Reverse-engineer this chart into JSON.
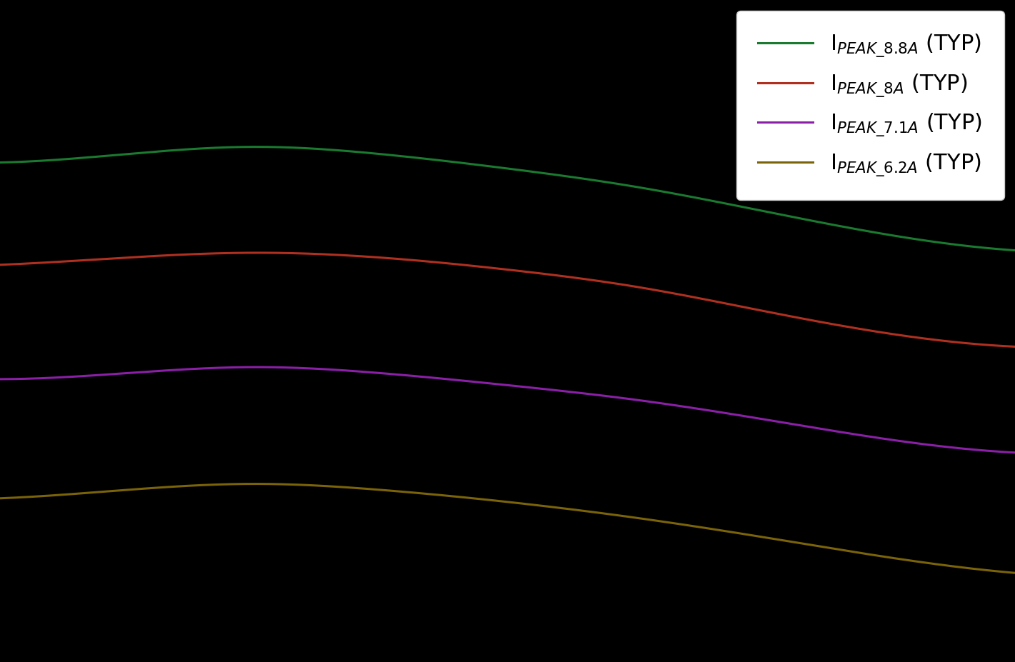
{
  "background_color": "#000000",
  "axes_background_color": "#000000",
  "legend_bg": "#ffffff",
  "legend_text_color": "#000000",
  "legend_edge_color": "#cccccc",
  "series": [
    {
      "label": "I$_{PEAK\\_8.8A}$ (TYP)",
      "color": "#1a7a30",
      "x": [
        -50,
        -25,
        0,
        25,
        50,
        75,
        100,
        125,
        150
      ],
      "y": [
        9.15,
        9.22,
        9.28,
        9.22,
        9.1,
        8.95,
        8.75,
        8.55,
        8.42
      ]
    },
    {
      "label": "I$_{PEAK\\_8A}$ (TYP)",
      "color": "#b03020",
      "x": [
        -50,
        -25,
        0,
        25,
        50,
        75,
        100,
        125,
        150
      ],
      "y": [
        8.3,
        8.36,
        8.4,
        8.36,
        8.26,
        8.12,
        7.92,
        7.73,
        7.62
      ]
    },
    {
      "label": "I$_{PEAK\\_7.1A}$ (TYP)",
      "color": "#8b1fa8",
      "x": [
        -50,
        -25,
        0,
        25,
        50,
        75,
        100,
        125,
        150
      ],
      "y": [
        7.35,
        7.4,
        7.45,
        7.4,
        7.3,
        7.18,
        7.02,
        6.85,
        6.74
      ]
    },
    {
      "label": "I$_{PEAK\\_6.2A}$ (TYP)",
      "color": "#7a6308",
      "x": [
        -50,
        -25,
        0,
        25,
        50,
        75,
        100,
        125,
        150
      ],
      "y": [
        6.36,
        6.43,
        6.48,
        6.43,
        6.33,
        6.2,
        6.04,
        5.87,
        5.74
      ]
    }
  ],
  "line_width": 2.2,
  "legend_fontsize": 22,
  "legend_loc": "upper right"
}
